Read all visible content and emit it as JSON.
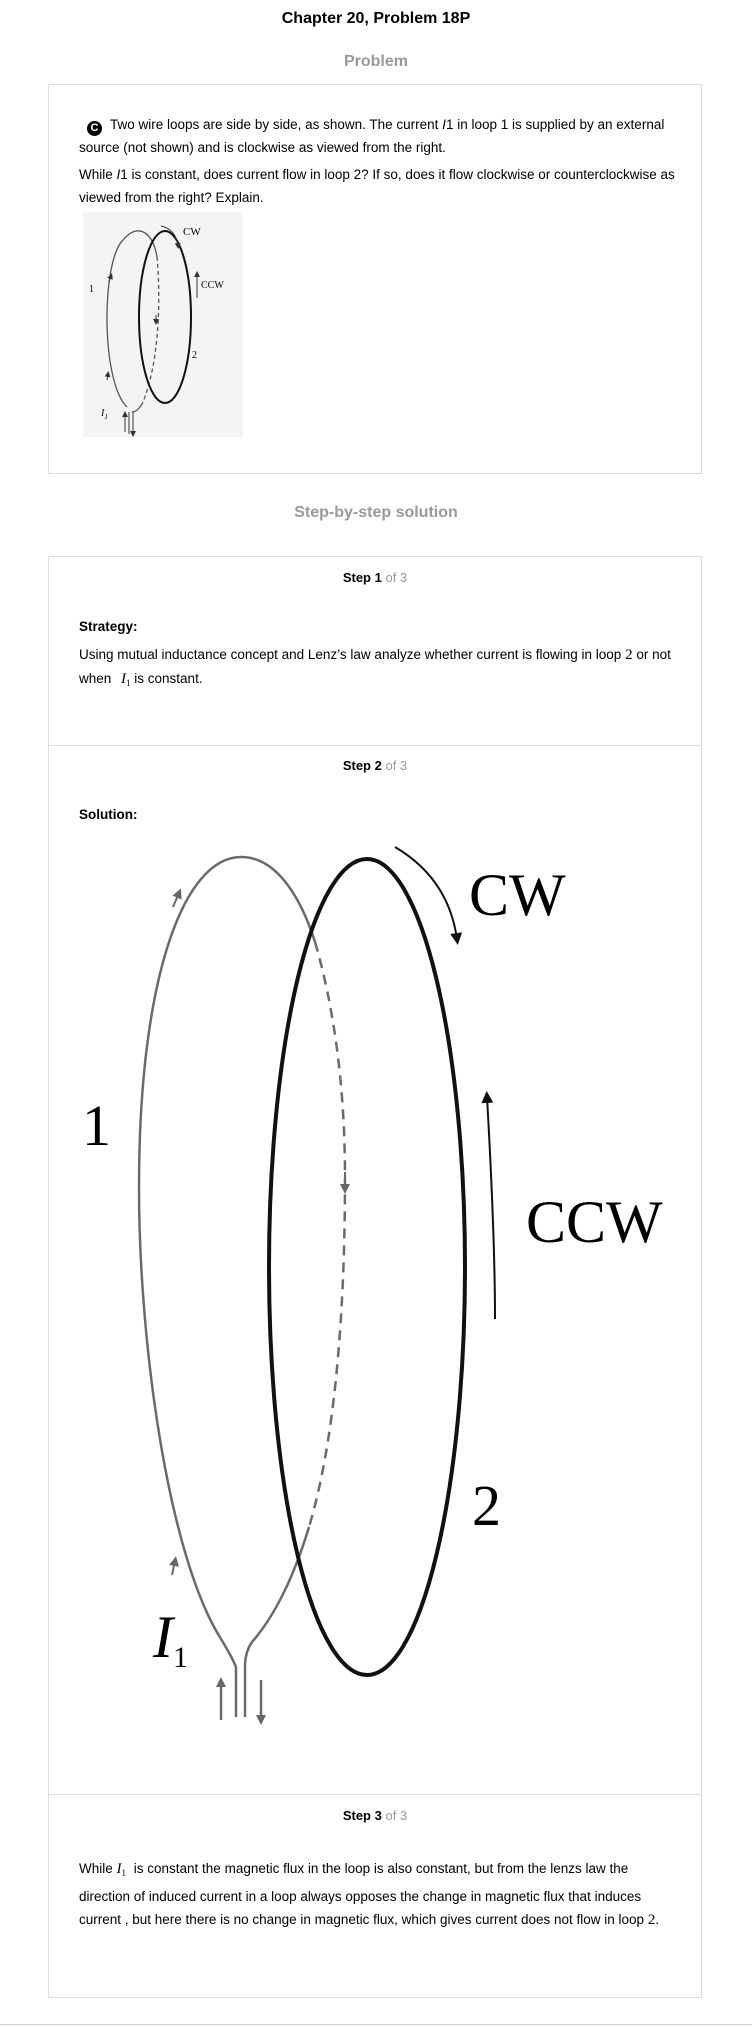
{
  "page": {
    "title": "Chapter 20, Problem 18P",
    "problem_heading": "Problem",
    "solution_heading": "Step-by-step solution"
  },
  "problem": {
    "badge": "C",
    "para1_part1": "Two wire loops are side by side, as shown. The current ",
    "para1_var": "I",
    "para1_part2": "1 in loop 1 is supplied by an external source (not shown) and is clockwise as viewed from the right.",
    "para2_part1": "While ",
    "para2_var": "I",
    "para2_part2": "1 is constant, does current flow in loop 2? If so, does it flow clockwise or counterclockwise as viewed from the right? Explain.",
    "figure": {
      "cw_label": "CW",
      "ccw_label": "CCW",
      "loop1_label": "1",
      "loop2_label": "2",
      "current_label": "I",
      "current_sub": "1"
    }
  },
  "steps": [
    {
      "number": "Step 1",
      "of": "of 3",
      "heading": "Strategy:",
      "text_part1": "Using mutual inductance concept and Lenz’s law analyze whether current is flowing in loop ",
      "loop_num": "2",
      "text_part2": " or not when ",
      "var": "I",
      "var_sub": "1",
      "text_part3": " is constant."
    },
    {
      "number": "Step 2",
      "of": "of 3",
      "heading": "Solution:",
      "figure": {
        "cw_label": "CW",
        "ccw_label": "CCW",
        "loop1_label": "1",
        "loop2_label": "2",
        "current_label": "I",
        "current_sub": "1"
      }
    },
    {
      "number": "Step 3",
      "of": "of 3",
      "text_part1": "While ",
      "var": "I",
      "var_sub": "1",
      "text_part2": " is constant the magnetic flux in the loop is also constant, but from the lenzs law the direction of induced current in a loop always opposes the change in magnetic flux that induces current , but here there is no change in magnetic flux, which gives current does not flow in loop ",
      "loop_num": "2",
      "text_part3": "."
    }
  ]
}
